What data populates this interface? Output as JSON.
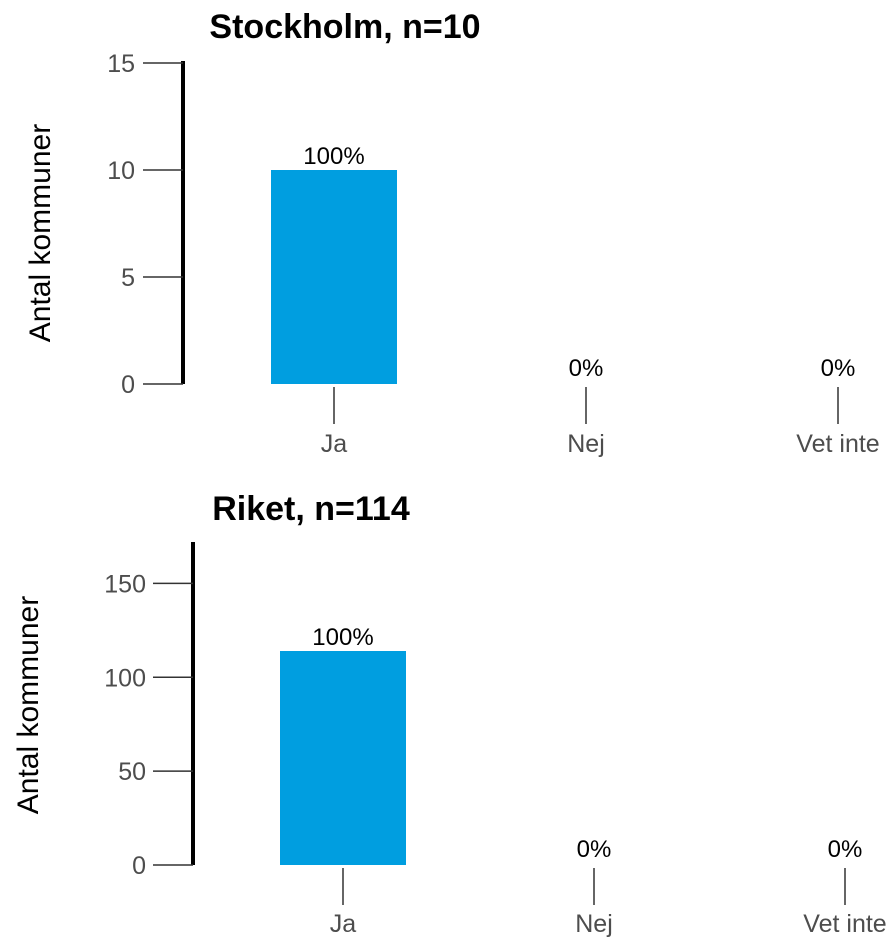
{
  "chart_data": [
    {
      "type": "bar",
      "title": "Stockholm, n=10",
      "ylabel": "Antal kommuner",
      "xlabel": "",
      "categories": [
        "Ja",
        "Nej",
        "Vet inte"
      ],
      "values": [
        10,
        0,
        0
      ],
      "data_labels": [
        "100%",
        "0%",
        "0%"
      ],
      "yticks": [
        0,
        5,
        10,
        15
      ],
      "ylim": [
        0,
        15
      ],
      "bar_color": "#009ee0",
      "grid": false
    },
    {
      "type": "bar",
      "title": "Riket, n=114",
      "ylabel": "Antal kommuner",
      "xlabel": "",
      "categories": [
        "Ja",
        "Nej",
        "Vet inte"
      ],
      "values": [
        114,
        0,
        0
      ],
      "data_labels": [
        "100%",
        "0%",
        "0%"
      ],
      "yticks": [
        0,
        50,
        100,
        150
      ],
      "ylim": [
        0,
        171
      ],
      "bar_color": "#009ee0",
      "grid": false
    }
  ]
}
